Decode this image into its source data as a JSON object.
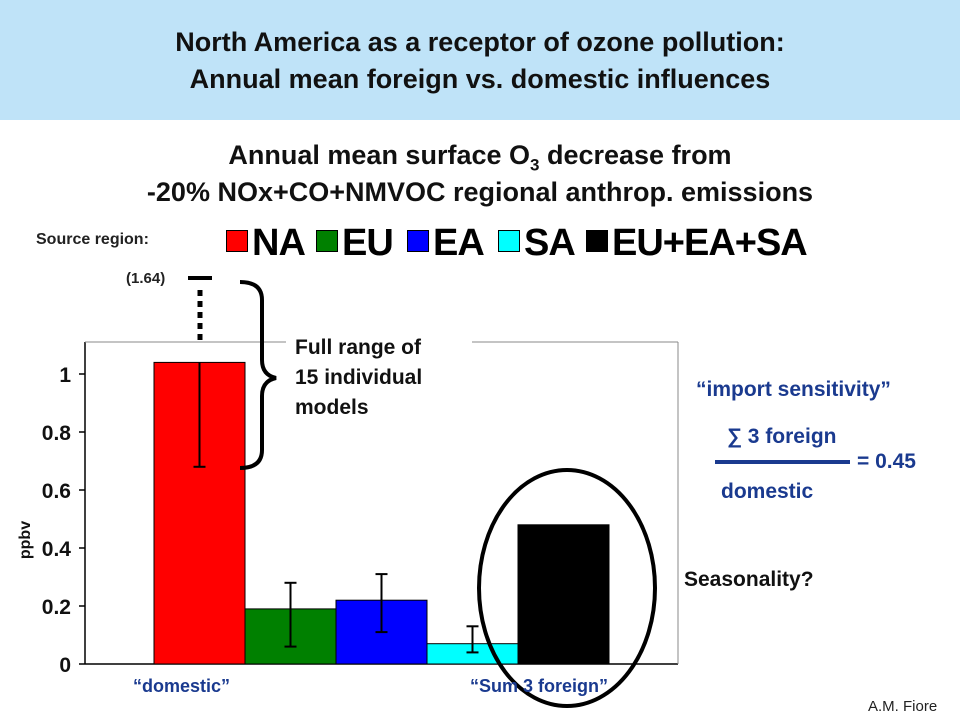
{
  "banner": {
    "line1": "North America as a receptor of ozone pollution:",
    "line2": "Annual mean foreign vs. domestic influences"
  },
  "subtitle": {
    "line1_main": "Annual mean surface O",
    "line1_sub": "3",
    "line1_rest": " decrease from",
    "line2": "-20% NOx+CO+NMVOC regional anthrop. emissions"
  },
  "legend": {
    "caption": "Source region:",
    "entries": [
      {
        "label": "NA",
        "color": "#ff0000"
      },
      {
        "label": "EU",
        "color": "#008000"
      },
      {
        "label": "EA",
        "color": "#0000ff"
      },
      {
        "label": "SA",
        "color": "#00ffff"
      },
      {
        "label": "EU+EA+SA",
        "color": "#000000"
      }
    ]
  },
  "annotations": {
    "max_label": "(1.64)",
    "range_note_1": "Full range of",
    "range_note_2": "15 individual",
    "range_note_3": "models",
    "import_sensitivity": "“import sensitivity”",
    "sum_foreign": "∑ 3 foreign",
    "domestic": "domestic",
    "ratio": "= 0.45",
    "seasonality": "Seasonality?",
    "domestic_caption": "“domestic”",
    "foreign_caption": "“Sum 3 foreign”",
    "author": "A.M. Fiore"
  },
  "chart_data": {
    "type": "bar",
    "categories": [
      "NA",
      "EU",
      "EA",
      "SA",
      "EU+EA+SA"
    ],
    "values": [
      1.04,
      0.19,
      0.22,
      0.07,
      0.48
    ],
    "error_low": [
      0.68,
      0.06,
      0.11,
      0.04,
      null
    ],
    "error_high": [
      1.64,
      0.28,
      0.31,
      0.13,
      null
    ],
    "colors": [
      "#ff0000",
      "#008000",
      "#0000ff",
      "#00ffff",
      "#000000"
    ],
    "ylabel": "ppbv",
    "ylim": [
      0,
      1.1
    ],
    "yticks": [
      0,
      0.2,
      0.4,
      0.6,
      0.8,
      1
    ],
    "ytick_labels": [
      "0",
      "0.2",
      "0.4",
      "0.6",
      "0.8",
      "1"
    ],
    "grid": false,
    "legend_position": "top"
  }
}
